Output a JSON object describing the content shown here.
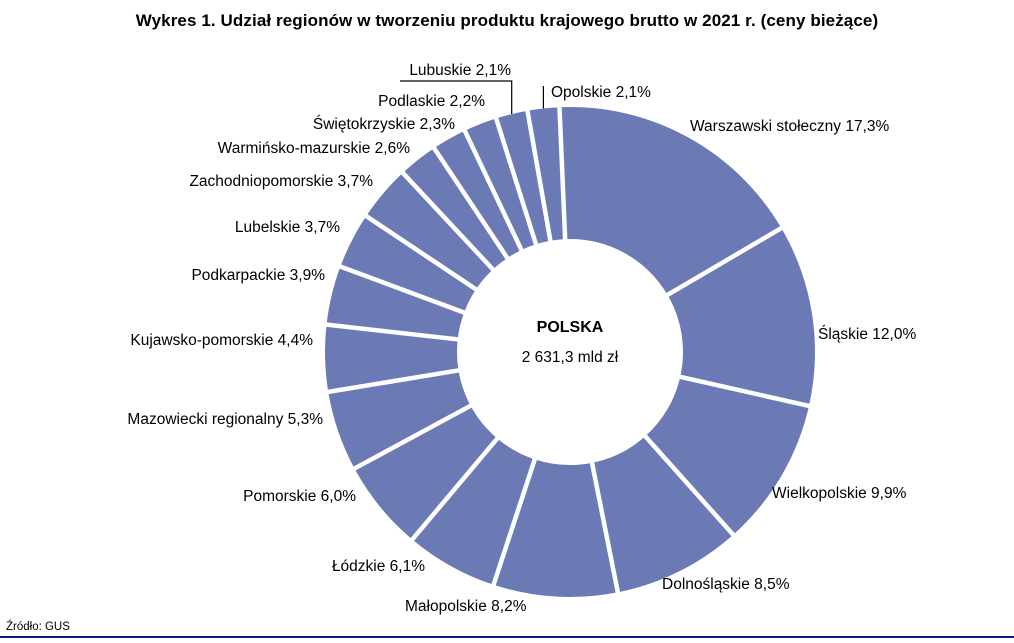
{
  "title": "Wykres 1. Udział regionów w tworzeniu produktu krajowego brutto w 2021 r. (ceny bieżące)",
  "source": "Źródło: GUS",
  "chart_data": {
    "type": "pie",
    "subtype": "donut",
    "title": "Wykres 1. Udział regionów w tworzeniu produktu krajowego brutto w 2021 r. (ceny bieżące)",
    "unit": "%",
    "center_label": "POLSKA",
    "center_value": "2 631,3 mld zł",
    "slice_color": "#6b7ab5",
    "gap_color": "#ffffff",
    "rotation_deg": -10,
    "legend": "none",
    "categories": [
      "Opolskie",
      "Warszawski stołeczny",
      "Śląskie",
      "Wielkopolskie",
      "Dolnośląskie",
      "Małopolskie",
      "Łódzkie",
      "Pomorskie",
      "Mazowiecki regionalny",
      "Kujawsko-pomorskie",
      "Podkarpackie",
      "Lubelskie",
      "Zachodniopomorskie",
      "Warmińsko-mazurskie",
      "Świętokrzyskie",
      "Podlaskie",
      "Lubuskie"
    ],
    "values": [
      2.1,
      17.3,
      12.0,
      9.9,
      8.5,
      8.2,
      6.1,
      6.0,
      5.3,
      4.4,
      3.9,
      3.7,
      3.7,
      2.6,
      2.3,
      2.2,
      2.1
    ],
    "labels": [
      "Opolskie 2,1%",
      "Warszawski stołeczny 17,3%",
      "Śląskie 12,0%",
      "Wielkopolskie 9,9%",
      "Dolnośląskie 8,5%",
      "Małopolskie 8,2%",
      "Łódzkie 6,1%",
      "Pomorskie 6,0%",
      "Mazowiecki regionalny 5,3%",
      "Kujawsko-pomorskie 4,4%",
      "Podkarpackie 3,9%",
      "Lubelskie 3,7%",
      "Zachodniopomorskie 3,7%",
      "Warmińsko-mazurskie 2,6%",
      "Świętokrzyskie 2,3%",
      "Podlaskie 2,2%",
      "Lubuskie 2,1%"
    ]
  }
}
